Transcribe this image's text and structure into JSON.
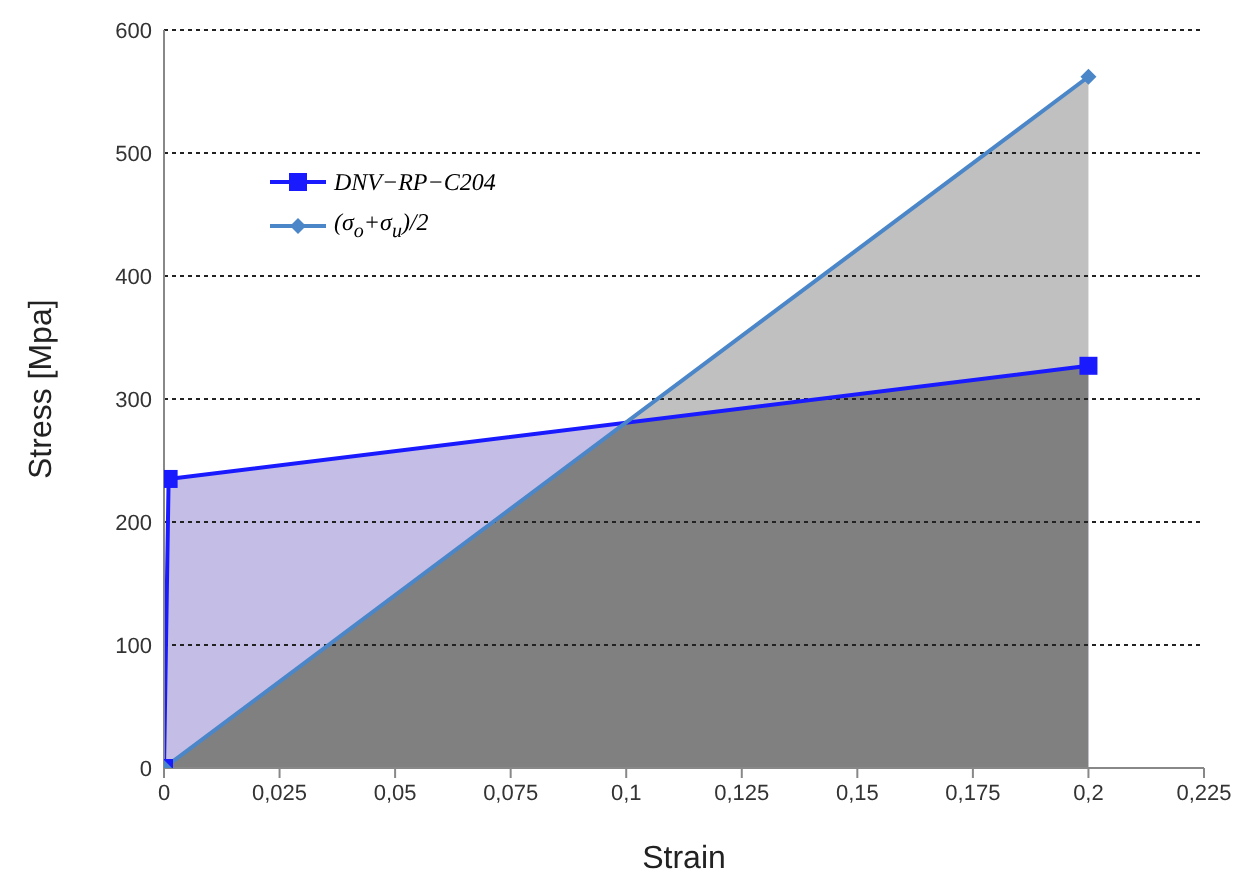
{
  "chart_data": {
    "type": "area",
    "xlabel": "Strain",
    "ylabel": "Stress  [Mpa]",
    "xlim": [
      0,
      0.225
    ],
    "xticks": [
      0,
      {
        "value": 0.025,
        "label": "0,025"
      },
      {
        "value": 0.05,
        "label": "0,05"
      },
      {
        "value": 0.075,
        "label": "0,075"
      },
      {
        "value": 0.1,
        "label": "0,1"
      },
      {
        "value": 0.125,
        "label": "0,125"
      },
      {
        "value": 0.15,
        "label": "0,15"
      },
      {
        "value": 0.175,
        "label": "0,175"
      },
      {
        "value": 0.2,
        "label": "0,2"
      },
      {
        "value": 0.225,
        "label": "0,225"
      }
    ],
    "ylim": [
      0,
      600
    ],
    "yticks": [
      0,
      100,
      200,
      300,
      400,
      500,
      600
    ],
    "grid": "y",
    "legend": "top left",
    "series": [
      {
        "name": "DNV−RP−C204",
        "type": "area",
        "marker": "square",
        "color": "#1a1aff",
        "x": [
          0,
          0.001,
          0.2
        ],
        "values": [
          0,
          235,
          327
        ]
      },
      {
        "name": "(σ$_{o}$+σ$_{u}$)/2",
        "type": "area",
        "marker": "diamond",
        "color": "#4a86c8",
        "x": [
          0,
          0.2
        ],
        "values": [
          0,
          562
        ]
      }
    ]
  }
}
